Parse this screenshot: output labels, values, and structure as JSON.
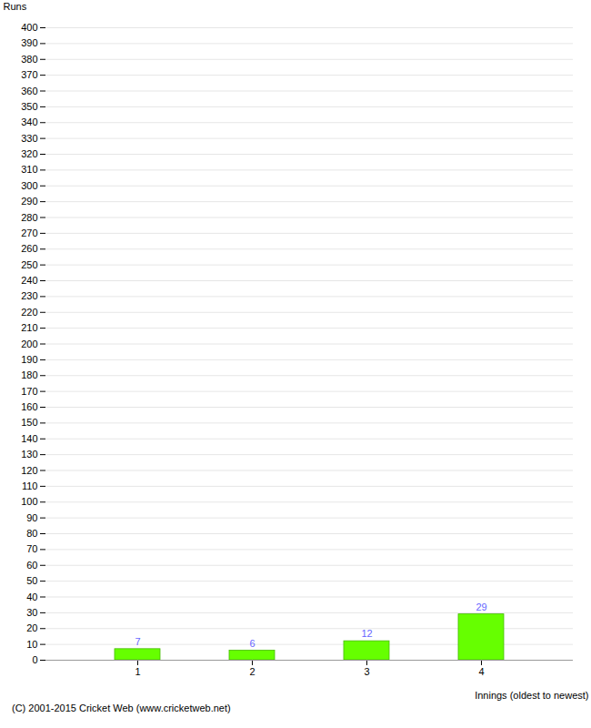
{
  "chart_data": {
    "type": "bar",
    "categories": [
      "1",
      "2",
      "3",
      "4"
    ],
    "values": [
      7,
      6,
      12,
      29
    ],
    "color": "#66ff00",
    "xlabel": "Innings (oldest to newest)",
    "ylabel": "Runs",
    "ylim": [
      0,
      400
    ],
    "yticks": [
      0,
      10,
      20,
      30,
      40,
      50,
      60,
      70,
      80,
      90,
      100,
      110,
      120,
      130,
      140,
      150,
      160,
      170,
      180,
      190,
      200,
      210,
      220,
      230,
      240,
      250,
      260,
      270,
      280,
      290,
      300,
      310,
      320,
      330,
      340,
      350,
      360,
      370,
      380,
      390,
      400
    ],
    "grid": true,
    "data_labels": true,
    "annotations": [
      "(C) 2001-2015 Cricket Web (www.cricketweb.net)"
    ]
  }
}
